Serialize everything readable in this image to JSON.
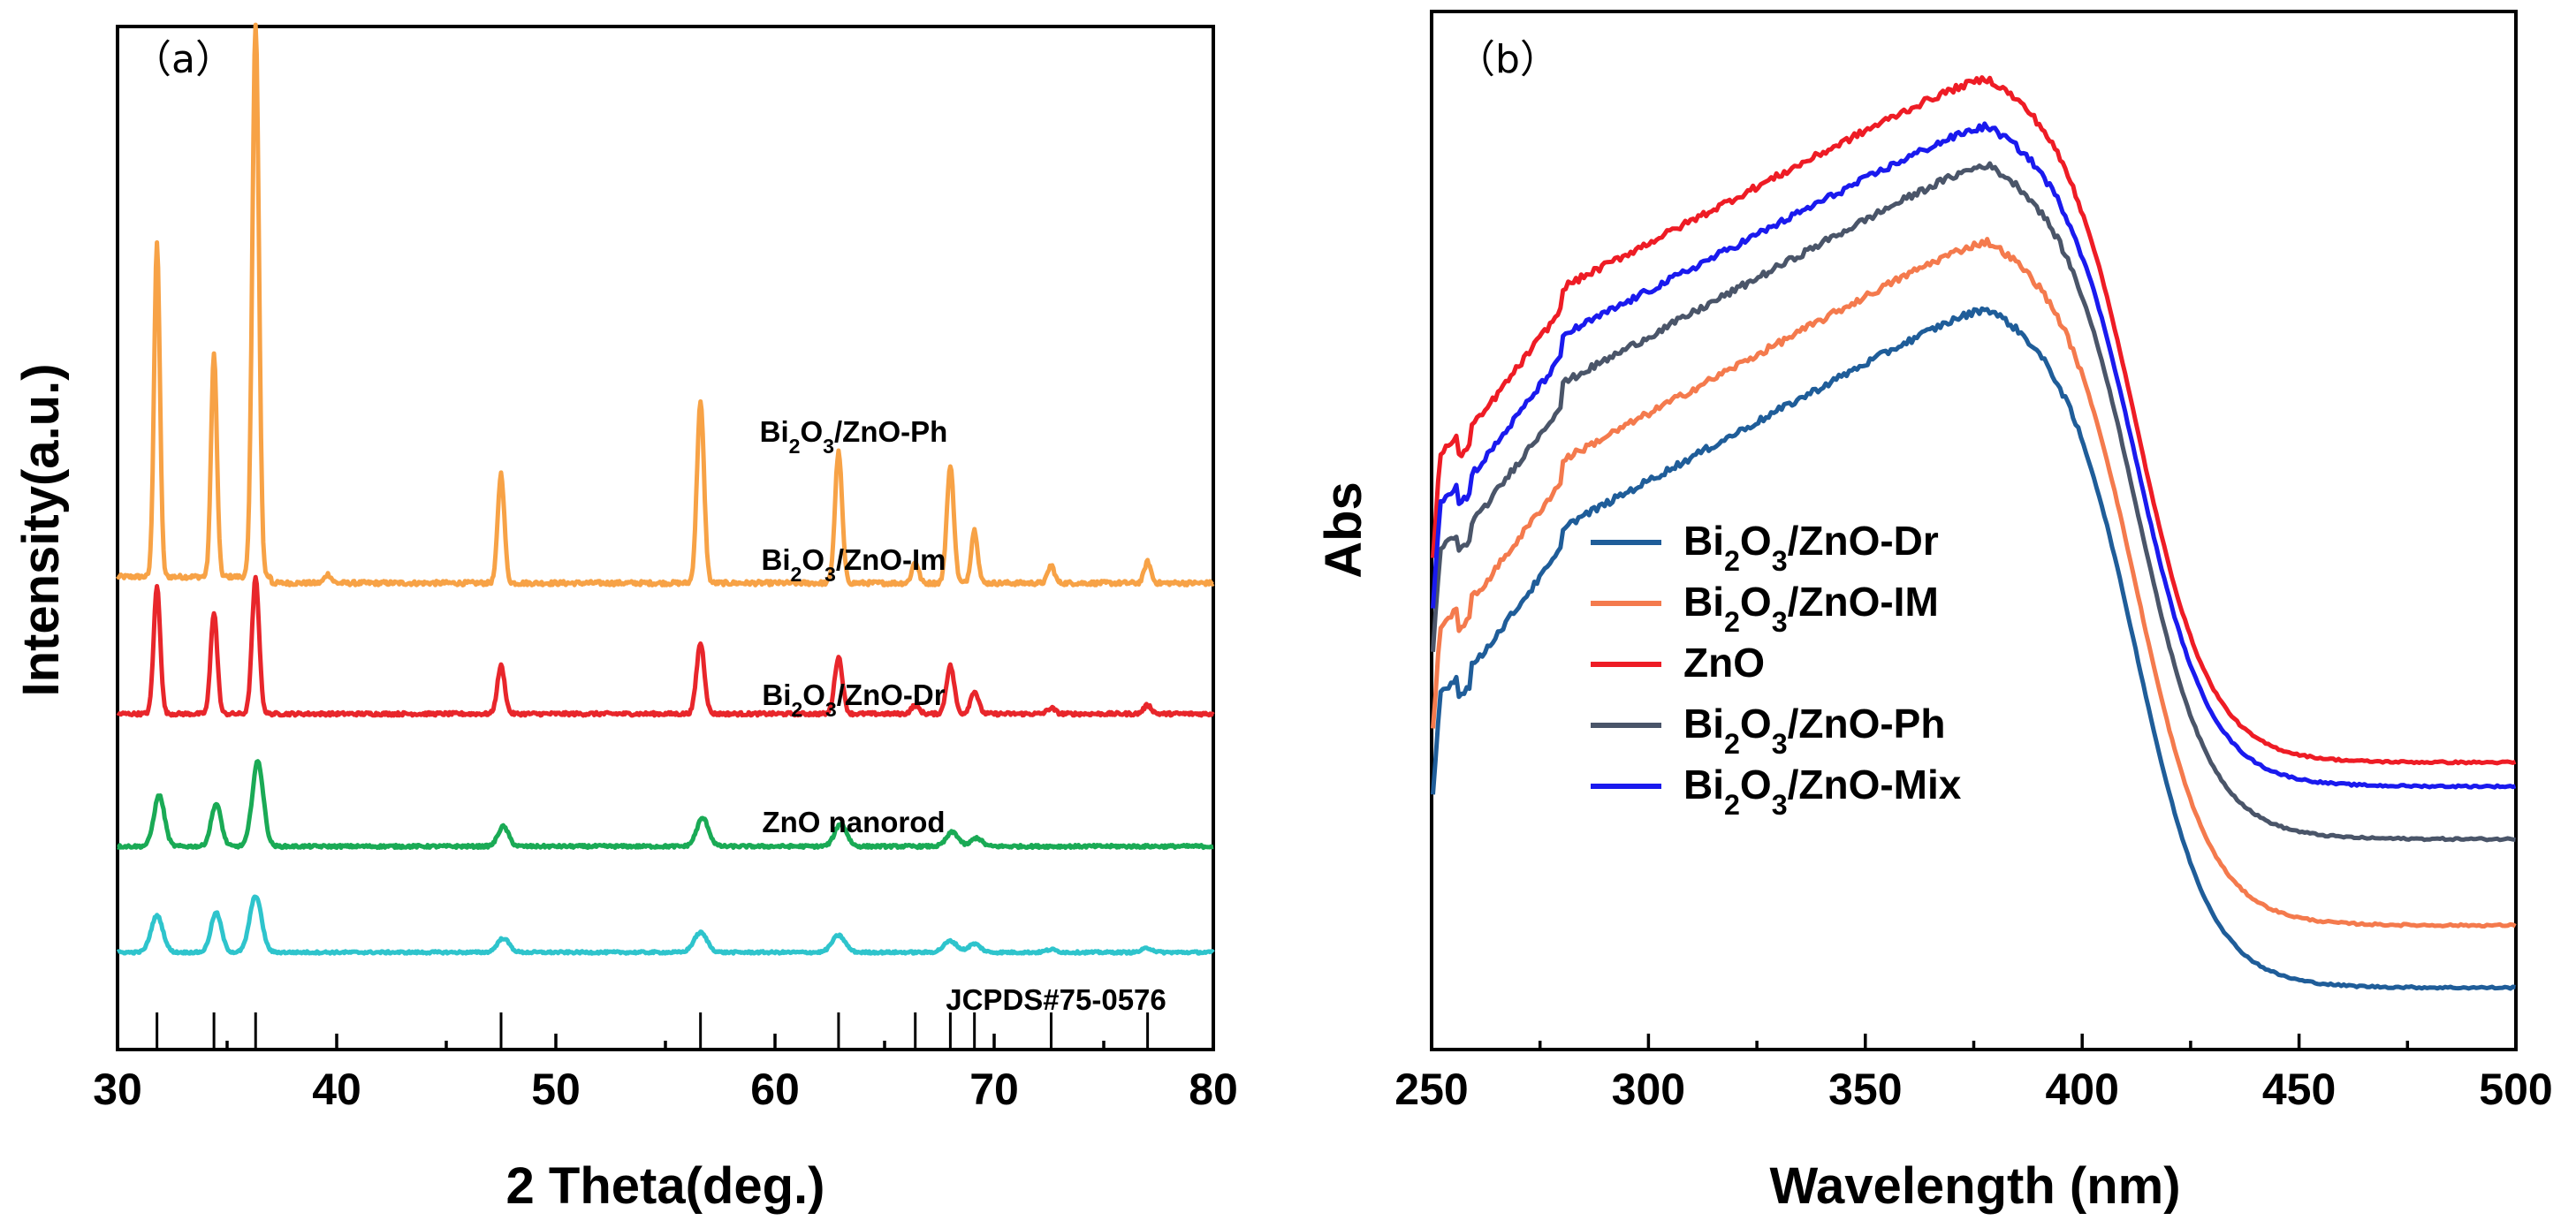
{
  "chart_data": [
    {
      "type": "line",
      "panel_label": "（a）",
      "xlabel": "2 Theta(deg.)",
      "ylabel": "Intensity(a.u.)",
      "xlim": [
        30,
        80
      ],
      "xticks": [
        30,
        40,
        50,
        60,
        70,
        80
      ],
      "yticks_shown": false,
      "reference": {
        "label": "JCPDS#75-0576",
        "peaks": [
          31.8,
          34.4,
          36.3,
          47.5,
          56.6,
          62.9,
          66.4,
          68.0,
          69.1,
          72.6,
          77.0
        ]
      },
      "series": [
        {
          "name_parts": [
            "Bi",
            "2",
            "O",
            "3",
            "/ZnO-Ph"
          ],
          "color": "#f7a246",
          "baseline": 0.6,
          "noise": 0.06,
          "peaks": [
            [
              31.8,
              9.4,
              0.22
            ],
            [
              34.4,
              6.3,
              0.22
            ],
            [
              36.3,
              15.6,
              0.25
            ],
            [
              47.5,
              3.1,
              0.25
            ],
            [
              56.6,
              5.1,
              0.27
            ],
            [
              62.9,
              3.7,
              0.27
            ],
            [
              66.4,
              0.6,
              0.25
            ],
            [
              68.0,
              3.3,
              0.27
            ],
            [
              69.1,
              1.5,
              0.25
            ],
            [
              72.6,
              0.5,
              0.25
            ],
            [
              77.0,
              0.6,
              0.25
            ],
            [
              39.6,
              0.25,
              0.25
            ]
          ]
        },
        {
          "name_parts": [
            "Bi",
            "2",
            "O",
            "3",
            "/ZnO-Im"
          ],
          "color": "#e8262b",
          "baseline": 0.0,
          "noise": 0.06,
          "peaks": [
            [
              31.8,
              4.5,
              0.25
            ],
            [
              34.4,
              3.6,
              0.25
            ],
            [
              36.3,
              4.8,
              0.27
            ],
            [
              47.5,
              1.7,
              0.28
            ],
            [
              56.6,
              2.5,
              0.3
            ],
            [
              62.9,
              2.0,
              0.3
            ],
            [
              66.4,
              0.3,
              0.3
            ],
            [
              68.0,
              1.7,
              0.3
            ],
            [
              69.1,
              0.8,
              0.3
            ],
            [
              72.6,
              0.2,
              0.3
            ],
            [
              77.0,
              0.3,
              0.3
            ]
          ]
        },
        {
          "name_parts": [
            "Bi",
            "2",
            "O",
            "3",
            "/ZnO-Dr"
          ],
          "color": "#1aaa55",
          "baseline": 0.0,
          "noise": 0.05,
          "peaks": [
            [
              31.9,
              1.8,
              0.4
            ],
            [
              34.5,
              1.5,
              0.38
            ],
            [
              36.4,
              3.0,
              0.42
            ],
            [
              47.6,
              0.7,
              0.4
            ],
            [
              56.7,
              1.0,
              0.45
            ],
            [
              63.0,
              0.8,
              0.45
            ],
            [
              68.1,
              0.5,
              0.45
            ],
            [
              69.2,
              0.3,
              0.4
            ]
          ]
        },
        {
          "name_parts": [
            "ZnO nanorod"
          ],
          "color": "#2ec4cc",
          "baseline": 0.0,
          "noise": 0.04,
          "peaks": [
            [
              31.8,
              1.3,
              0.45
            ],
            [
              34.5,
              1.4,
              0.4
            ],
            [
              36.3,
              2.0,
              0.45
            ],
            [
              47.6,
              0.5,
              0.45
            ],
            [
              56.6,
              0.7,
              0.5
            ],
            [
              62.9,
              0.6,
              0.5
            ],
            [
              68.0,
              0.4,
              0.5
            ],
            [
              69.1,
              0.3,
              0.45
            ],
            [
              72.6,
              0.1,
              0.4
            ],
            [
              77.0,
              0.15,
              0.4
            ]
          ]
        }
      ]
    },
    {
      "type": "line",
      "panel_label": "（b）",
      "xlabel": "Wavelength (nm)",
      "ylabel": "Abs",
      "xlim": [
        250,
        500
      ],
      "xticks": [
        250,
        300,
        350,
        400,
        450,
        500
      ],
      "yticks_shown": false,
      "legend_position": "center-left",
      "series": [
        {
          "name_parts": [
            "Bi",
            "2",
            "O",
            "3",
            "/ZnO-Dr"
          ],
          "color": "#1f5d99",
          "level_350": 0.62,
          "peak": 0.72,
          "tail": 0.0
        },
        {
          "name_parts": [
            "Bi",
            "2",
            "O",
            "3",
            "/ZnO-IM"
          ],
          "color": "#f47a4d",
          "level_350": 0.69,
          "peak": 0.79,
          "tail": 0.065
        },
        {
          "name_parts": [
            "ZnO"
          ],
          "color": "#ee1c25",
          "level_350": 0.87,
          "peak": 0.96,
          "tail": 0.235
        },
        {
          "name_parts": [
            "Bi",
            "2",
            "O",
            "3",
            "/ZnO-Ph"
          ],
          "color": "#4a5569",
          "level_350": 0.77,
          "peak": 0.87,
          "tail": 0.155
        },
        {
          "name_parts": [
            "Bi",
            "2",
            "O",
            "3",
            "/ZnO-Mix"
          ],
          "color": "#1a1aee",
          "level_350": 0.82,
          "peak": 0.91,
          "tail": 0.21
        }
      ]
    }
  ]
}
